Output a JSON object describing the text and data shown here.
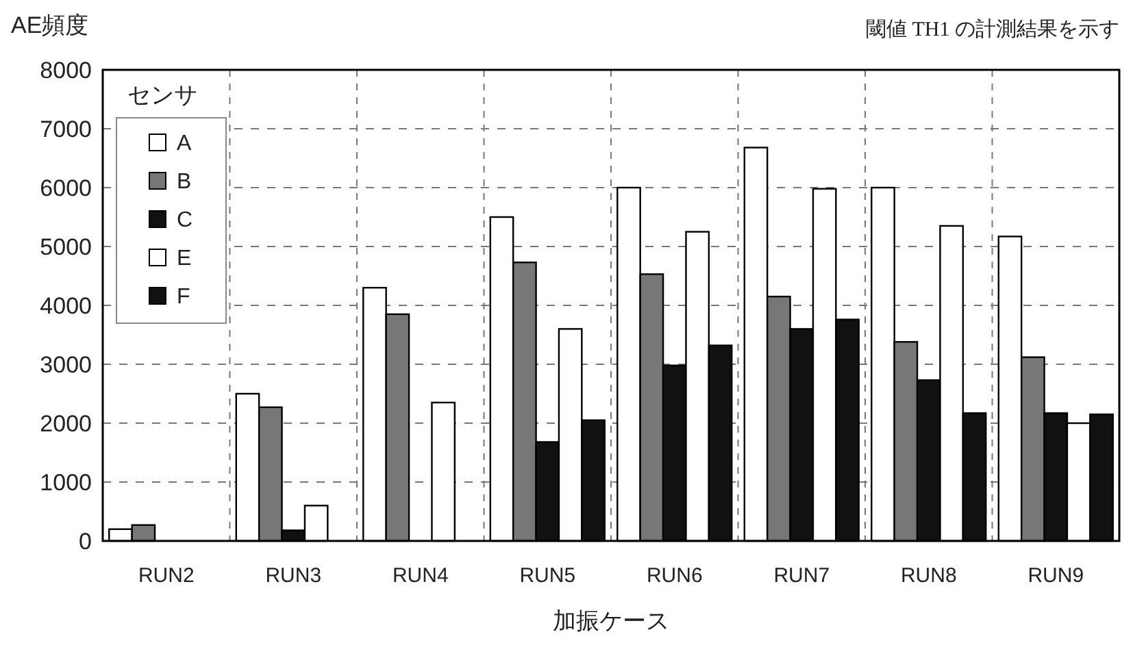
{
  "chart_data": {
    "type": "bar",
    "ylabel": "AE頻度",
    "xlabel": "加振ケース",
    "annotations": [
      "閾値 TH1 の計測結果を示す"
    ],
    "legend_title": "センサ",
    "categories": [
      "RUN2",
      "RUN3",
      "RUN4",
      "RUN5",
      "RUN6",
      "RUN7",
      "RUN8",
      "RUN9"
    ],
    "series": [
      {
        "name": "A",
        "color": "#ffffff",
        "values": [
          200,
          2500,
          4300,
          5500,
          6000,
          6680,
          6000,
          5170
        ]
      },
      {
        "name": "B",
        "color": "#777777",
        "values": [
          270,
          2270,
          3850,
          4730,
          4530,
          4150,
          3380,
          3120
        ]
      },
      {
        "name": "C",
        "color": "#111111",
        "values": [
          0,
          180,
          0,
          1680,
          2980,
          3600,
          2730,
          2170
        ]
      },
      {
        "name": "E",
        "color": "#ffffff",
        "values": [
          0,
          600,
          2350,
          3600,
          5250,
          5980,
          5350,
          2000
        ]
      },
      {
        "name": "F",
        "color": "#111111",
        "values": [
          0,
          0,
          0,
          2050,
          3320,
          3760,
          2170,
          2150
        ]
      }
    ],
    "ylim": [
      0,
      8000
    ],
    "yticks": [
      0,
      1000,
      2000,
      3000,
      4000,
      5000,
      6000,
      7000,
      8000
    ],
    "grid": true,
    "legend": "top left"
  }
}
